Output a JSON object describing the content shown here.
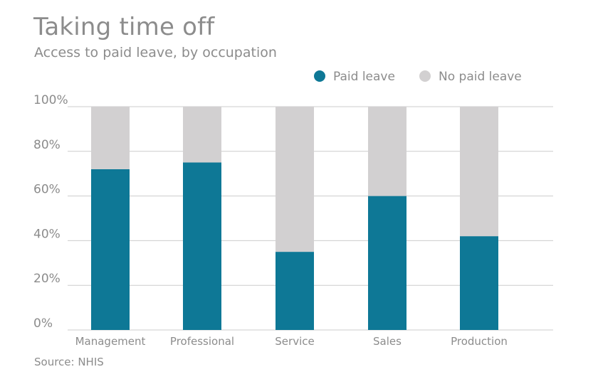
{
  "title": "Taking time off",
  "subtitle": "Access to paid leave, by occupation",
  "source": "Source: NHIS",
  "colors": {
    "paid": "#0e7896",
    "no_paid": "#d2d0d1",
    "grid": "#cccccc",
    "text": "#8c8c8c"
  },
  "chart_data": {
    "type": "bar",
    "stacked": true,
    "categories": [
      "Management",
      "Professional",
      "Service",
      "Sales",
      "Production"
    ],
    "series": [
      {
        "name": "Paid leave",
        "color": "#0e7896",
        "values": [
          72,
          75,
          35,
          60,
          42
        ]
      },
      {
        "name": "No paid leave",
        "color": "#d2d0d1",
        "values": [
          28,
          25,
          65,
          40,
          58
        ]
      }
    ],
    "ylim": [
      0,
      100
    ],
    "yticks": [
      "0%",
      "20%",
      "40%",
      "60%",
      "80%",
      "100%"
    ],
    "ytick_values": [
      0,
      20,
      40,
      60,
      80,
      100
    ],
    "grid": true,
    "legend": "top-right",
    "xlabel": "",
    "ylabel": ""
  }
}
